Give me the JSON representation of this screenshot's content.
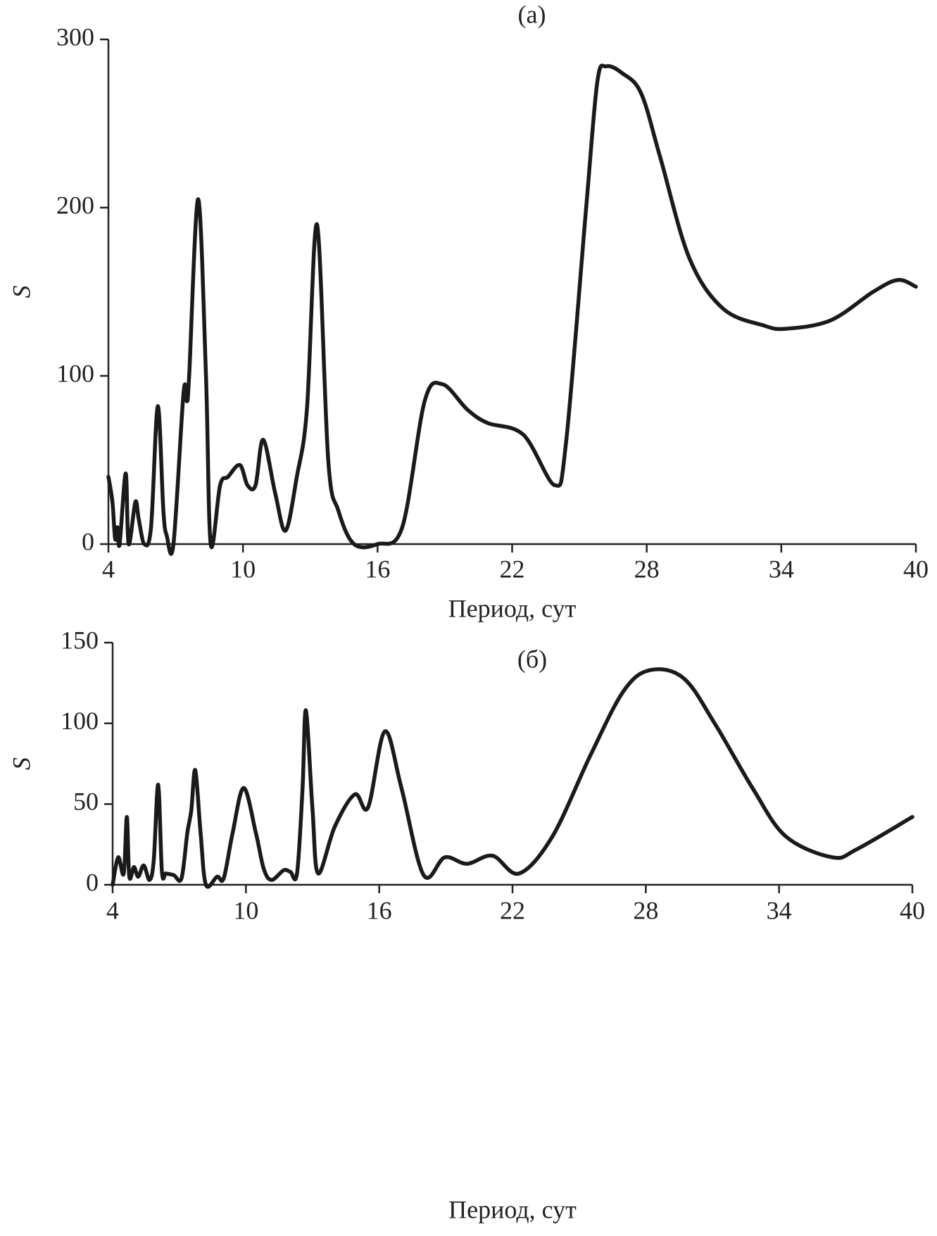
{
  "chart_data": [
    {
      "type": "line",
      "title": "(a)",
      "xlabel": "Период, сут",
      "ylabel": "S",
      "color": "#1a1a1a",
      "xlim": [
        4,
        40
      ],
      "ylim": [
        0,
        300
      ],
      "xticks": [
        4,
        10,
        16,
        22,
        28,
        34,
        40
      ],
      "yticks": [
        0,
        100,
        200,
        300
      ],
      "x": [
        4.0,
        4.18,
        4.3,
        4.4,
        4.5,
        4.77,
        4.9,
        5.2,
        5.35,
        5.6,
        5.9,
        6.2,
        6.45,
        6.6,
        6.9,
        7.35,
        7.5,
        7.6,
        8.0,
        8.35,
        8.56,
        8.98,
        9.33,
        9.86,
        10.2,
        10.56,
        10.9,
        11.44,
        11.9,
        12.4,
        12.85,
        13.3,
        13.8,
        14.25,
        14.95,
        16.0,
        17.1,
        18.1,
        18.9,
        20.0,
        20.9,
        22.5,
        23.9,
        24.4,
        25.3,
        25.8,
        26.2,
        26.9,
        27.75,
        28.6,
        29.9,
        31.4,
        33.2,
        34.2,
        36.2,
        38.1,
        39.2,
        40.0
      ],
      "values": [
        40,
        25,
        3,
        10,
        0,
        42,
        0,
        25,
        15,
        0,
        10,
        82,
        20,
        5,
        0,
        90,
        85,
        100,
        205,
        100,
        0,
        35,
        40,
        47,
        35,
        35,
        62,
        30,
        8,
        40,
        80,
        190,
        50,
        20,
        0,
        0,
        10,
        85,
        95,
        80,
        72,
        65,
        35,
        60,
        200,
        275,
        284,
        280,
        268,
        230,
        170,
        140,
        130,
        128,
        133,
        150,
        157,
        153
      ]
    },
    {
      "type": "line",
      "title": "(б)",
      "xlabel": "Период, сут",
      "ylabel": "S",
      "color": "#1a1a1a",
      "xlim": [
        4,
        40
      ],
      "ylim": [
        0,
        150
      ],
      "xticks": [
        4,
        10,
        16,
        22,
        28,
        34,
        40
      ],
      "yticks": [
        0,
        50,
        100,
        150
      ],
      "x": [
        4.0,
        4.25,
        4.5,
        4.64,
        4.75,
        4.96,
        5.15,
        5.4,
        5.66,
        5.85,
        6.05,
        6.22,
        6.4,
        6.75,
        7.1,
        7.36,
        7.54,
        7.72,
        7.96,
        8.2,
        8.7,
        9.0,
        9.4,
        9.9,
        10.45,
        10.8,
        11.15,
        11.7,
        12.0,
        12.3,
        12.55,
        12.7,
        13.0,
        13.25,
        14.0,
        14.9,
        15.5,
        16.25,
        17.0,
        18.0,
        18.95,
        19.95,
        21.1,
        22.3,
        23.8,
        25.5,
        27.0,
        28.2,
        29.7,
        31.1,
        32.8,
        34.3,
        36.4,
        37.5,
        40.0
      ],
      "values": [
        0,
        17,
        7,
        42,
        5,
        11,
        5,
        12,
        3,
        15,
        62,
        8,
        7,
        6,
        4,
        32,
        46,
        71,
        32,
        0,
        5,
        4,
        32,
        60,
        32,
        10,
        3,
        9,
        8,
        7,
        60,
        108,
        46,
        7,
        36,
        56,
        48,
        95,
        60,
        6,
        17,
        13,
        18,
        7,
        30,
        80,
        120,
        133,
        128,
        100,
        60,
        30,
        17,
        22,
        42
      ]
    }
  ]
}
